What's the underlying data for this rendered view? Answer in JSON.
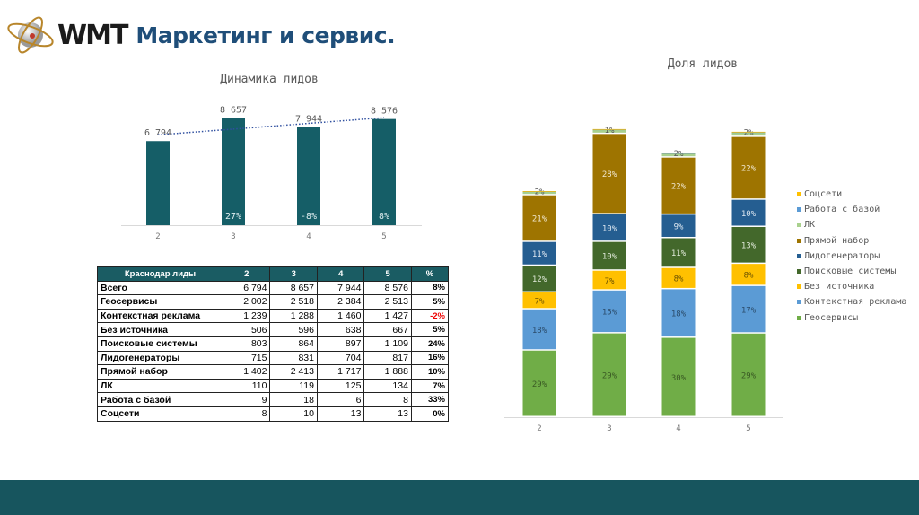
{
  "header": {
    "logo_text": "WMT",
    "title": "Маркетинг и сервис."
  },
  "chart_data": [
    {
      "type": "bar",
      "title": "Динамика лидов",
      "categories": [
        "2",
        "3",
        "4",
        "5"
      ],
      "values": [
        6794,
        8657,
        7944,
        8576
      ],
      "value_labels": [
        "6 794",
        "8 657",
        "7 944",
        "8 576"
      ],
      "inner_labels": [
        "",
        "27%",
        "-8%",
        "8%"
      ],
      "trendline": "linear",
      "ylim": [
        0,
        10000
      ],
      "grid": false,
      "color": "#155e67",
      "trend_color": "#2f4f9f"
    },
    {
      "type": "bar",
      "stacked": true,
      "title": "Доля лидов",
      "categories": [
        "2",
        "3",
        "4",
        "5"
      ],
      "legend": "right",
      "series": [
        {
          "name": "Геосервисы",
          "values": [
            2002,
            2518,
            2384,
            2513
          ],
          "labels": [
            "29%",
            "29%",
            "30%",
            "29%"
          ],
          "color": "#70ad47",
          "text": "#3a5a24"
        },
        {
          "name": "Контекстная реклама",
          "values": [
            1239,
            1288,
            1460,
            1427
          ],
          "labels": [
            "18%",
            "15%",
            "18%",
            "17%"
          ],
          "color": "#5b9bd5",
          "text": "#2b4c6b"
        },
        {
          "name": "Без источника",
          "values": [
            506,
            596,
            638,
            667
          ],
          "labels": [
            "7%",
            "7%",
            "8%",
            "8%"
          ],
          "color": "#ffc000",
          "text": "#6b5200"
        },
        {
          "name": "Поисковые системы",
          "values": [
            803,
            864,
            897,
            1109
          ],
          "labels": [
            "12%",
            "10%",
            "11%",
            "13%"
          ],
          "color": "#43682b",
          "text": "#dfe8d8"
        },
        {
          "name": "Лидогенераторы",
          "values": [
            715,
            831,
            704,
            817
          ],
          "labels": [
            "11%",
            "10%",
            "9%",
            "10%"
          ],
          "color": "#255e91",
          "text": "#dbe6f0"
        },
        {
          "name": "Прямой набор",
          "values": [
            1402,
            2413,
            1717,
            1888
          ],
          "labels": [
            "21%",
            "28%",
            "22%",
            "22%"
          ],
          "color": "#9e7400",
          "text": "#f0e6cc"
        },
        {
          "name": "ЛК",
          "values": [
            110,
            119,
            125,
            134
          ],
          "labels": [
            "2%",
            "1%",
            "2%",
            "2%"
          ],
          "color": "#a9d18e",
          "text": "#555"
        },
        {
          "name": "Работа с базой",
          "values": [
            9,
            18,
            6,
            8
          ],
          "labels": [
            "",
            "",
            "",
            ""
          ],
          "color": "#5b9bd5",
          "text": "#555"
        },
        {
          "name": "Соцсети",
          "values": [
            8,
            10,
            13,
            13
          ],
          "labels": [
            "",
            "",
            "",
            ""
          ],
          "color": "#ffc000",
          "text": "#555"
        }
      ]
    }
  ],
  "table": {
    "headers": [
      "Краснодар лиды",
      "2",
      "3",
      "4",
      "5",
      "%"
    ],
    "rows": [
      [
        "Всего",
        "6 794",
        "8 657",
        "7 944",
        "8 576",
        "8%"
      ],
      [
        "Геосервисы",
        "2 002",
        "2 518",
        "2 384",
        "2 513",
        "5%"
      ],
      [
        "Контекстная реклама",
        "1 239",
        "1 288",
        "1 460",
        "1 427",
        "-2%"
      ],
      [
        "Без источника",
        "506",
        "596",
        "638",
        "667",
        "5%"
      ],
      [
        "Поисковые системы",
        "803",
        "864",
        "897",
        "1 109",
        "24%"
      ],
      [
        "Лидогенераторы",
        "715",
        "831",
        "704",
        "817",
        "16%"
      ],
      [
        "Прямой набор",
        "1 402",
        "2 413",
        "1 717",
        "1 888",
        "10%"
      ],
      [
        "ЛК",
        "110",
        "119",
        "125",
        "134",
        "7%"
      ],
      [
        "Работа с базой",
        "9",
        "18",
        "6",
        "8",
        "33%"
      ],
      [
        "Соцсети",
        "8",
        "10",
        "13",
        "13",
        "0%"
      ]
    ]
  },
  "legend_order": [
    "Соцсети",
    "Работа с базой",
    "ЛК",
    "Прямой набор",
    "Лидогенераторы",
    "Поисковые системы",
    "Без источника",
    "Контекстная реклама",
    "Геосервисы"
  ]
}
